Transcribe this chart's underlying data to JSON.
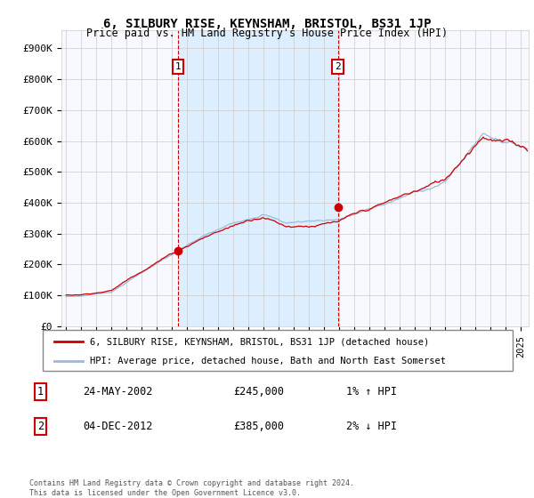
{
  "title": "6, SILBURY RISE, KEYNSHAM, BRISTOL, BS31 1JP",
  "subtitle": "Price paid vs. HM Land Registry's House Price Index (HPI)",
  "ylabel_ticks": [
    "£0",
    "£100K",
    "£200K",
    "£300K",
    "£400K",
    "£500K",
    "£600K",
    "£700K",
    "£800K",
    "£900K"
  ],
  "ytick_vals": [
    0,
    100000,
    200000,
    300000,
    400000,
    500000,
    600000,
    700000,
    800000,
    900000
  ],
  "ylim": [
    0,
    960000
  ],
  "xlim_left": 1994.7,
  "xlim_right": 2025.5,
  "sale1": {
    "date_num": 2002.38,
    "price": 245000,
    "label": "1",
    "date_str": "24-MAY-2002",
    "pct": "1%",
    "dir": "↑"
  },
  "sale2": {
    "date_num": 2012.92,
    "price": 385000,
    "label": "2",
    "date_str": "04-DEC-2012",
    "pct": "2%",
    "dir": "↓"
  },
  "legend_line1": "6, SILBURY RISE, KEYNSHAM, BRISTOL, BS31 1JP (detached house)",
  "legend_line2": "HPI: Average price, detached house, Bath and North East Somerset",
  "footer": "Contains HM Land Registry data © Crown copyright and database right 2024.\nThis data is licensed under the Open Government Licence v3.0.",
  "line_color_red": "#cc0000",
  "line_color_blue": "#99bbdd",
  "highlight_color": "#ddeeff",
  "bg_color": "#f0f4ff",
  "grid_color": "#cccccc",
  "annotation_box_color": "#cc0000"
}
